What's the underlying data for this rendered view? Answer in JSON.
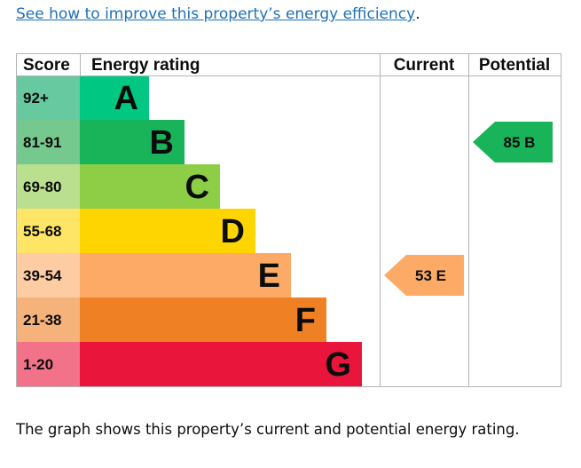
{
  "link": {
    "text": "See how to improve this property’s energy efficiency",
    "suffix": "."
  },
  "caption": "The graph shows this property’s current and potential energy rating.",
  "chart_data": {
    "type": "bar",
    "headers": {
      "score": "Score",
      "rating": "Energy rating",
      "current": "Current",
      "potential": "Potential"
    },
    "bands": [
      {
        "letter": "A",
        "range": "92+",
        "min": 92,
        "max": 100,
        "color": "#00c781",
        "score_bg": "#66c9a0"
      },
      {
        "letter": "B",
        "range": "81-91",
        "min": 81,
        "max": 91,
        "color": "#19b459",
        "score_bg": "#75c98f"
      },
      {
        "letter": "C",
        "range": "69-80",
        "min": 69,
        "max": 80,
        "color": "#8dce46",
        "score_bg": "#badf8f"
      },
      {
        "letter": "D",
        "range": "55-68",
        "min": 55,
        "max": 68,
        "color": "#ffd500",
        "score_bg": "#ffe566"
      },
      {
        "letter": "E",
        "range": "39-54",
        "min": 39,
        "max": 54,
        "color": "#fcaa65",
        "score_bg": "#fdcca3"
      },
      {
        "letter": "F",
        "range": "21-38",
        "min": 21,
        "max": 38,
        "color": "#ef8023",
        "score_bg": "#f5b37b"
      },
      {
        "letter": "G",
        "range": "1-20",
        "min": 1,
        "max": 20,
        "color": "#e9153b",
        "score_bg": "#f27389"
      }
    ],
    "current": {
      "value": 53,
      "letter": "E",
      "label": "53 E",
      "color": "#fcaa65"
    },
    "potential": {
      "value": 85,
      "letter": "B",
      "label": "85 B",
      "color": "#19b459"
    }
  }
}
